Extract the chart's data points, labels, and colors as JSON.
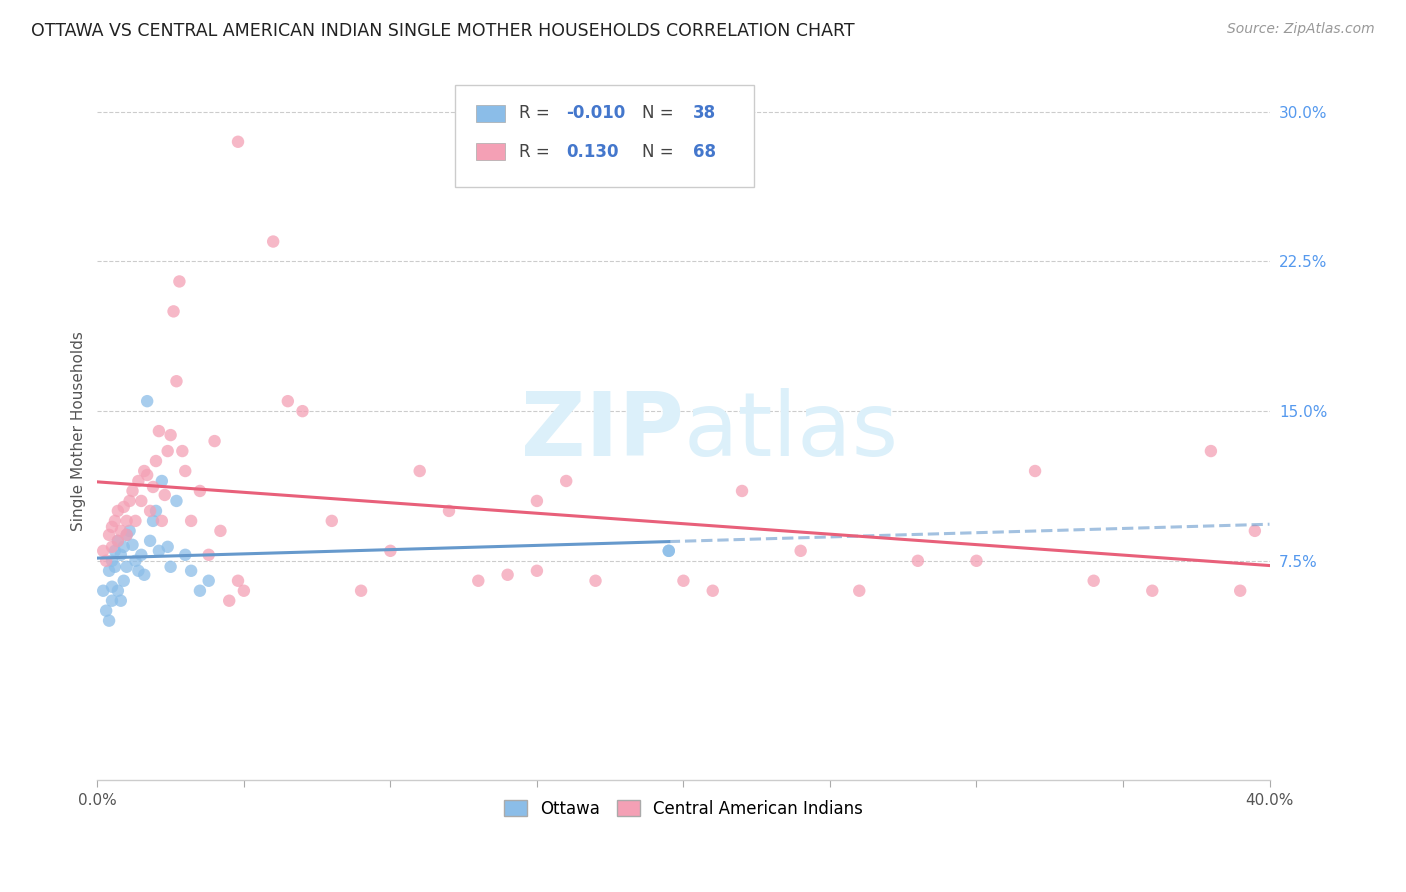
{
  "title": "OTTAWA VS CENTRAL AMERICAN INDIAN SINGLE MOTHER HOUSEHOLDS CORRELATION CHART",
  "source": "Source: ZipAtlas.com",
  "ylabel": "Single Mother Households",
  "xlim": [
    0.0,
    0.4
  ],
  "ylim": [
    -0.035,
    0.315
  ],
  "y_ticks_right": [
    0.075,
    0.15,
    0.225,
    0.3
  ],
  "y_tick_labels_right": [
    "7.5%",
    "15.0%",
    "22.5%",
    "30.0%"
  ],
  "x_ticks": [
    0.0,
    0.05,
    0.1,
    0.15,
    0.2,
    0.25,
    0.3,
    0.35,
    0.4
  ],
  "color_ottawa": "#8BBDE8",
  "color_central": "#F4A0B5",
  "color_ottawa_line": "#6699CC",
  "color_central_line": "#E8607A",
  "watermark_color": "#DCF0FA",
  "background_color": "#ffffff",
  "grid_color": "#cccccc",
  "ottawa_x": [
    0.002,
    0.003,
    0.004,
    0.004,
    0.005,
    0.005,
    0.005,
    0.006,
    0.006,
    0.007,
    0.007,
    0.008,
    0.008,
    0.009,
    0.009,
    0.01,
    0.01,
    0.011,
    0.012,
    0.013,
    0.014,
    0.015,
    0.016,
    0.017,
    0.018,
    0.019,
    0.02,
    0.021,
    0.022,
    0.024,
    0.025,
    0.027,
    0.03,
    0.032,
    0.035,
    0.038,
    0.195,
    0.195
  ],
  "ottawa_y": [
    0.06,
    0.05,
    0.07,
    0.045,
    0.075,
    0.062,
    0.055,
    0.08,
    0.072,
    0.085,
    0.06,
    0.078,
    0.055,
    0.082,
    0.065,
    0.088,
    0.072,
    0.09,
    0.083,
    0.075,
    0.07,
    0.078,
    0.068,
    0.155,
    0.085,
    0.095,
    0.1,
    0.08,
    0.115,
    0.082,
    0.072,
    0.105,
    0.078,
    0.07,
    0.06,
    0.065,
    0.08,
    0.08
  ],
  "central_x": [
    0.002,
    0.003,
    0.004,
    0.005,
    0.005,
    0.006,
    0.007,
    0.007,
    0.008,
    0.009,
    0.01,
    0.01,
    0.011,
    0.012,
    0.013,
    0.014,
    0.015,
    0.016,
    0.017,
    0.018,
    0.019,
    0.02,
    0.021,
    0.022,
    0.023,
    0.024,
    0.025,
    0.026,
    0.027,
    0.028,
    0.029,
    0.03,
    0.032,
    0.035,
    0.038,
    0.04,
    0.042,
    0.045,
    0.048,
    0.05,
    0.06,
    0.065,
    0.07,
    0.08,
    0.09,
    0.1,
    0.11,
    0.12,
    0.13,
    0.14,
    0.15,
    0.16,
    0.17,
    0.2,
    0.21,
    0.22,
    0.24,
    0.26,
    0.28,
    0.3,
    0.32,
    0.34,
    0.36,
    0.38,
    0.39,
    0.395,
    0.048,
    0.15
  ],
  "central_y": [
    0.08,
    0.075,
    0.088,
    0.092,
    0.082,
    0.095,
    0.085,
    0.1,
    0.09,
    0.102,
    0.088,
    0.095,
    0.105,
    0.11,
    0.095,
    0.115,
    0.105,
    0.12,
    0.118,
    0.1,
    0.112,
    0.125,
    0.14,
    0.095,
    0.108,
    0.13,
    0.138,
    0.2,
    0.165,
    0.215,
    0.13,
    0.12,
    0.095,
    0.11,
    0.078,
    0.135,
    0.09,
    0.055,
    0.285,
    0.06,
    0.235,
    0.155,
    0.15,
    0.095,
    0.06,
    0.08,
    0.12,
    0.1,
    0.065,
    0.068,
    0.105,
    0.115,
    0.065,
    0.065,
    0.06,
    0.11,
    0.08,
    0.06,
    0.075,
    0.075,
    0.12,
    0.065,
    0.06,
    0.13,
    0.06,
    0.09,
    0.065,
    0.07
  ]
}
